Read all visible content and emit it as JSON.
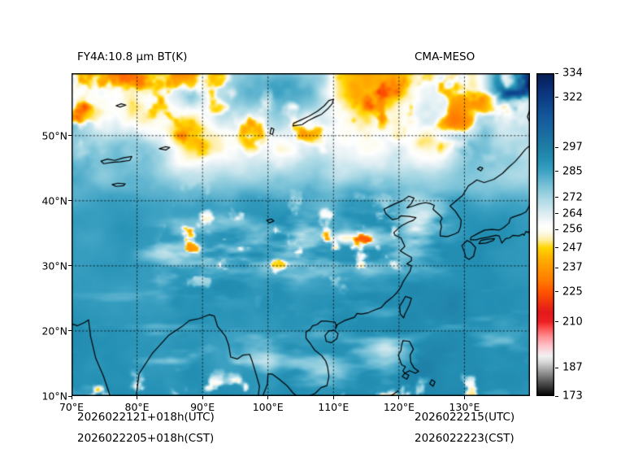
{
  "chart_data": {
    "type": "heatmap",
    "title": "FY4A:10.8 μm BT(K)",
    "subtitle": "CMA-MESO",
    "x_axis": {
      "range": [
        70,
        140
      ],
      "ticks": [
        70,
        80,
        90,
        100,
        110,
        120,
        130
      ],
      "label_suffix": "°E"
    },
    "y_axis": {
      "range": [
        10,
        59.6
      ],
      "ticks": [
        10,
        20,
        30,
        40,
        50
      ],
      "label_suffix": "°N"
    },
    "grid": {
      "on": true,
      "style": "dotted",
      "lon_lines": [
        80,
        90,
        100,
        110,
        120,
        130
      ],
      "lat_lines": [
        20,
        30,
        40,
        50
      ]
    },
    "colorbar": {
      "range": [
        173,
        334
      ],
      "ticks": [
        334,
        322,
        297,
        285,
        272,
        264,
        256,
        247,
        237,
        225,
        210,
        187,
        173
      ]
    },
    "colormap": [
      [
        173,
        "#000000"
      ],
      [
        178,
        "#3c3c3c"
      ],
      [
        184,
        "#8a8a8a"
      ],
      [
        190,
        "#d9d9d9"
      ],
      [
        193,
        "#f2f2f2"
      ],
      [
        198,
        "#ffc4cc"
      ],
      [
        203,
        "#ff8a8e"
      ],
      [
        207,
        "#fb4f4f"
      ],
      [
        210,
        "#ee2222"
      ],
      [
        215,
        "#e31a1c"
      ],
      [
        225,
        "#ff5500"
      ],
      [
        231,
        "#ff7f00"
      ],
      [
        237,
        "#ff9900"
      ],
      [
        242,
        "#ffb300"
      ],
      [
        247,
        "#ffd700"
      ],
      [
        251,
        "#ffeea6"
      ],
      [
        255,
        "#fdfdf0"
      ],
      [
        258,
        "#ffffff"
      ],
      [
        262,
        "#e9f3f6"
      ],
      [
        266,
        "#cfe8ef"
      ],
      [
        272,
        "#a6d7e4"
      ],
      [
        278,
        "#79c2d8"
      ],
      [
        285,
        "#3fa3c4"
      ],
      [
        291,
        "#2490b4"
      ],
      [
        297,
        "#1f7fa6"
      ],
      [
        305,
        "#1a6aa0"
      ],
      [
        312,
        "#15599c"
      ],
      [
        322,
        "#0d3c85"
      ],
      [
        328,
        "#0a2b6f"
      ],
      [
        334,
        "#071f52"
      ]
    ],
    "coastlines": [
      [
        [
          70,
          21.1
        ],
        [
          70.9,
          20.8
        ],
        [
          72,
          21.3
        ],
        [
          72.6,
          21.7
        ],
        [
          72.9,
          19.2
        ],
        [
          73.7,
          15.8
        ],
        [
          74.9,
          13
        ],
        [
          75.9,
          10
        ]
      ],
      [
        [
          79.9,
          10
        ],
        [
          80.3,
          13.4
        ],
        [
          82.3,
          16.5
        ],
        [
          84.8,
          19.3
        ],
        [
          86.9,
          20.7
        ],
        [
          88,
          21.6
        ],
        [
          89.5,
          21.9
        ],
        [
          91,
          22.5
        ],
        [
          91.8,
          22.3
        ],
        [
          92.3,
          20.7
        ],
        [
          93.5,
          19.2
        ],
        [
          94,
          17.8
        ],
        [
          94.3,
          16
        ],
        [
          95.3,
          15.7
        ],
        [
          96.2,
          16.3
        ],
        [
          97.2,
          16.4
        ],
        [
          97.6,
          15.3
        ],
        [
          98.2,
          13.3
        ],
        [
          98.7,
          11.5
        ],
        [
          98.5,
          10
        ]
      ],
      [
        [
          99.2,
          10
        ],
        [
          99.9,
          11.8
        ],
        [
          100,
          13.4
        ],
        [
          100.6,
          13.4
        ],
        [
          101.7,
          12.6
        ],
        [
          102.9,
          11.6
        ],
        [
          103.8,
          10.5
        ],
        [
          104.4,
          10
        ]
      ],
      [
        [
          106.2,
          10
        ],
        [
          107.2,
          10.4
        ],
        [
          108.1,
          11.3
        ],
        [
          109,
          11.6
        ],
        [
          109.3,
          13
        ],
        [
          109.1,
          14.5
        ],
        [
          108.8,
          15.4
        ],
        [
          108.2,
          16.2
        ],
        [
          107.1,
          17.1
        ],
        [
          106.5,
          18
        ],
        [
          105.8,
          18.9
        ],
        [
          105.8,
          19.8
        ],
        [
          106.5,
          20.3
        ],
        [
          106.8,
          20.8
        ],
        [
          107.5,
          21
        ],
        [
          108.1,
          21.5
        ],
        [
          109,
          21.5
        ],
        [
          109.6,
          21.4
        ],
        [
          110.2,
          21.4
        ],
        [
          110.4,
          20.9
        ],
        [
          110.3,
          20.3
        ],
        [
          110.6,
          21
        ],
        [
          111.7,
          21.6
        ],
        [
          113.2,
          22.1
        ],
        [
          113.6,
          22.7
        ],
        [
          114.3,
          22.6
        ],
        [
          115.3,
          22.8
        ],
        [
          116.5,
          23.3
        ],
        [
          117.3,
          23.6
        ],
        [
          118,
          24.4
        ],
        [
          119,
          25.2
        ],
        [
          119.6,
          25.8
        ],
        [
          120.2,
          26.6
        ],
        [
          120.6,
          27.5
        ],
        [
          121.1,
          28.3
        ],
        [
          121.7,
          29.2
        ],
        [
          121.9,
          30
        ],
        [
          121.2,
          30.3
        ],
        [
          121.9,
          30.8
        ],
        [
          121.9,
          31.3
        ],
        [
          121,
          31.8
        ],
        [
          120.2,
          32.3
        ],
        [
          120.9,
          33
        ],
        [
          120.3,
          34.3
        ],
        [
          119.4,
          34.7
        ],
        [
          119.2,
          35.1
        ],
        [
          120.3,
          36.1
        ],
        [
          121.4,
          36.7
        ],
        [
          122.2,
          37
        ],
        [
          122.6,
          37.4
        ],
        [
          121.6,
          37.6
        ],
        [
          120.3,
          37.7
        ],
        [
          119.9,
          37.3
        ],
        [
          119,
          37.1
        ],
        [
          118,
          38
        ],
        [
          117.7,
          38.7
        ],
        [
          118.3,
          39
        ],
        [
          119.3,
          39.5
        ],
        [
          120.5,
          40
        ],
        [
          121.5,
          40.7
        ],
        [
          122.3,
          40.4
        ],
        [
          121.9,
          39.6
        ],
        [
          121.2,
          38.9
        ],
        [
          122.2,
          39.2
        ],
        [
          123,
          39.5
        ],
        [
          124,
          39.7
        ],
        [
          124.7,
          39.6
        ],
        [
          125.4,
          39.3
        ],
        [
          125.2,
          38.7
        ],
        [
          126.2,
          37.8
        ],
        [
          126.6,
          37.3
        ],
        [
          126.3,
          36.8
        ],
        [
          126.5,
          36
        ],
        [
          126.3,
          35.2
        ],
        [
          126.3,
          34.6
        ],
        [
          127.4,
          34.5
        ],
        [
          128.5,
          34.9
        ],
        [
          129.1,
          35.2
        ],
        [
          129.4,
          36
        ],
        [
          129.5,
          37
        ],
        [
          128.6,
          38.4
        ],
        [
          127.8,
          39.2
        ],
        [
          128.6,
          39.9
        ],
        [
          129.7,
          40.8
        ],
        [
          130.6,
          42.3
        ],
        [
          131.2,
          42.7
        ],
        [
          131.9,
          43.2
        ],
        [
          133,
          42.8
        ],
        [
          134.5,
          43.3
        ],
        [
          135.8,
          44.2
        ],
        [
          136.8,
          45.2
        ],
        [
          137.7,
          46
        ],
        [
          138.5,
          46.9
        ],
        [
          139.3,
          47.9
        ],
        [
          140,
          48.5
        ]
      ],
      [
        [
          121,
          25.3
        ],
        [
          121.9,
          25
        ],
        [
          121.6,
          24
        ],
        [
          120.9,
          22.6
        ],
        [
          120.7,
          22
        ],
        [
          120.2,
          22.6
        ],
        [
          120.1,
          23.8
        ],
        [
          120.6,
          24.6
        ],
        [
          121,
          25.3
        ]
      ],
      [
        [
          108.7,
          19.3
        ],
        [
          109.3,
          20
        ],
        [
          110.1,
          20.1
        ],
        [
          110.7,
          19.6
        ],
        [
          110.5,
          18.8
        ],
        [
          109.7,
          18.2
        ],
        [
          108.9,
          18.4
        ],
        [
          108.7,
          19.3
        ]
      ],
      [
        [
          130.4,
          33.9
        ],
        [
          131,
          33.6
        ],
        [
          131.7,
          32.8
        ],
        [
          131.4,
          31.5
        ],
        [
          130.7,
          31
        ],
        [
          130.2,
          31.3
        ],
        [
          130,
          32.1
        ],
        [
          129.6,
          33.1
        ],
        [
          130.4,
          33.9
        ]
      ],
      [
        [
          132.2,
          33.4
        ],
        [
          133.3,
          33.5
        ],
        [
          134.4,
          33.9
        ],
        [
          134.6,
          34.2
        ],
        [
          133.5,
          34.1
        ],
        [
          132.5,
          33.9
        ],
        [
          132.2,
          33.4
        ]
      ],
      [
        [
          140,
          39.6
        ],
        [
          139.8,
          39
        ],
        [
          139.4,
          38.3
        ],
        [
          138.6,
          37.9
        ],
        [
          137.4,
          37.5
        ],
        [
          137,
          37.3
        ],
        [
          136.8,
          36.6
        ],
        [
          136,
          35.9
        ],
        [
          135.3,
          35.5
        ],
        [
          134.2,
          35.6
        ],
        [
          133.1,
          35.5
        ],
        [
          132.1,
          35
        ],
        [
          131,
          34.4
        ],
        [
          130.9,
          34
        ],
        [
          131.8,
          34
        ],
        [
          132.4,
          34.2
        ],
        [
          133.6,
          34.4
        ],
        [
          134.8,
          34.7
        ],
        [
          135.3,
          34.6
        ],
        [
          135.7,
          33.5
        ],
        [
          136.3,
          34.2
        ],
        [
          136.9,
          34.3
        ],
        [
          137.4,
          34.7
        ],
        [
          138.3,
          34.6
        ],
        [
          138.9,
          34.9
        ],
        [
          139.1,
          34.7
        ],
        [
          139.4,
          35.3
        ],
        [
          139.8,
          35.1
        ],
        [
          140,
          35.6
        ]
      ],
      [
        [
          140,
          52
        ],
        [
          139.6,
          52.9
        ],
        [
          139.9,
          53.8
        ],
        [
          140,
          54.2
        ]
      ],
      [
        [
          120.6,
          18.5
        ],
        [
          121.6,
          18.4
        ],
        [
          122.2,
          17.2
        ],
        [
          121.7,
          16.3
        ],
        [
          121.8,
          15.2
        ],
        [
          122.3,
          14.3
        ],
        [
          123,
          13.8
        ],
        [
          122.5,
          13.5
        ],
        [
          121.6,
          13.9
        ],
        [
          120.9,
          13.5
        ],
        [
          120.6,
          13.9
        ],
        [
          121,
          14.5
        ],
        [
          120.4,
          14.8
        ],
        [
          119.9,
          16.3
        ],
        [
          120.3,
          17
        ],
        [
          120.4,
          17.8
        ],
        [
          120.6,
          18.5
        ]
      ],
      [
        [
          120.9,
          13.5
        ],
        [
          121.5,
          13.2
        ],
        [
          121.2,
          12.6
        ],
        [
          120.5,
          13
        ],
        [
          120.9,
          13.5
        ]
      ],
      [
        [
          125,
          12.5
        ],
        [
          125.5,
          12.2
        ],
        [
          125.2,
          11.5
        ],
        [
          124.7,
          11.9
        ],
        [
          125,
          12.5
        ]
      ],
      [
        [
          119.9,
          10.8
        ],
        [
          119.2,
          10.3
        ],
        [
          118.6,
          10
        ]
      ],
      [
        [
          74.5,
          46.1
        ],
        [
          75.5,
          46.4
        ],
        [
          76.6,
          46.2
        ],
        [
          77.9,
          46.6
        ],
        [
          79.2,
          46.8
        ],
        [
          78.9,
          46.2
        ],
        [
          77.5,
          46
        ],
        [
          76.2,
          45.9
        ],
        [
          74.9,
          45.7
        ],
        [
          74.5,
          46.1
        ]
      ],
      [
        [
          76.2,
          42.5
        ],
        [
          77.1,
          42.7
        ],
        [
          78.2,
          42.6
        ],
        [
          77.9,
          42.3
        ],
        [
          76.8,
          42.2
        ],
        [
          76.2,
          42.5
        ]
      ],
      [
        [
          83.4,
          48
        ],
        [
          84.3,
          48.3
        ],
        [
          85,
          48.2
        ],
        [
          84.4,
          47.8
        ],
        [
          83.4,
          48
        ]
      ],
      [
        [
          76.8,
          54.6
        ],
        [
          77.6,
          54.9
        ],
        [
          78.3,
          54.7
        ],
        [
          77.4,
          54.4
        ],
        [
          76.8,
          54.6
        ]
      ],
      [
        [
          100.3,
          50.3
        ],
        [
          100.5,
          51.2
        ],
        [
          100.9,
          51
        ],
        [
          100.7,
          50.2
        ],
        [
          100.3,
          50.3
        ]
      ],
      [
        [
          103.8,
          51.5
        ],
        [
          105.2,
          51.7
        ],
        [
          106.1,
          52.3
        ],
        [
          107.3,
          52.9
        ],
        [
          108.2,
          53.3
        ],
        [
          109.2,
          54.2
        ],
        [
          109.8,
          54.9
        ],
        [
          110,
          55.6
        ],
        [
          109.3,
          55.4
        ],
        [
          108.6,
          54.6
        ],
        [
          107.6,
          53.8
        ],
        [
          106.3,
          53
        ],
        [
          105,
          52.4
        ],
        [
          103.9,
          51.9
        ],
        [
          103.8,
          51.5
        ]
      ],
      [
        [
          132,
          44.9
        ],
        [
          132.4,
          45.2
        ],
        [
          132.8,
          45
        ],
        [
          132.5,
          44.6
        ],
        [
          132,
          44.9
        ]
      ],
      [
        [
          99.8,
          37
        ],
        [
          100.5,
          37.2
        ],
        [
          100.9,
          36.9
        ],
        [
          100.2,
          36.6
        ],
        [
          99.8,
          37
        ]
      ]
    ]
  },
  "annotations": {
    "init_utc": "2026022121+018h(UTC)",
    "init_cst": "2026022205+018h(CST)",
    "valid_utc": "2026022215(UTC)",
    "valid_cst": "2026022223(CST)"
  }
}
